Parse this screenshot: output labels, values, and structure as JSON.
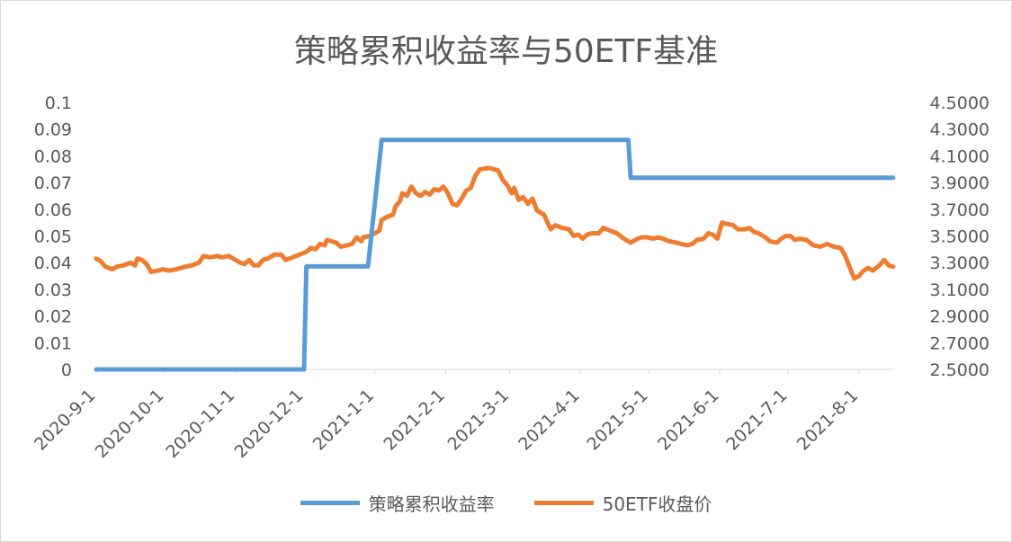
{
  "chart_data": {
    "type": "line",
    "title": "策略累积收益率与50ETF基准",
    "x_tick_labels": [
      "2020-9-1",
      "2020-10-1",
      "2020-11-1",
      "2020-12-1",
      "2021-1-1",
      "2021-2-1",
      "2021-3-1",
      "2021-4-1",
      "2021-5-1",
      "2021-6-1",
      "2021-7-1",
      "2021-8-1"
    ],
    "x_range": [
      "2020-9-1",
      "2021-8-16"
    ],
    "y_left": {
      "min": 0,
      "max": 0.1,
      "ticks": [
        "0",
        "0.01",
        "0.02",
        "0.03",
        "0.04",
        "0.05",
        "0.06",
        "0.07",
        "0.08",
        "0.09",
        "0.1"
      ]
    },
    "y_right": {
      "min": 2.5,
      "max": 4.5,
      "ticks": [
        "2.5000",
        "2.7000",
        "2.9000",
        "3.1000",
        "3.3000",
        "3.5000",
        "3.7000",
        "3.9000",
        "4.1000",
        "4.3000",
        "4.5000"
      ]
    },
    "grid": false,
    "legend_position": "bottom",
    "series": [
      {
        "name": "策略累积收益率",
        "axis": "left",
        "color": "#5b9bd5",
        "points": [
          [
            "2020-9-1",
            0
          ],
          [
            "2020-12-1",
            0
          ],
          [
            "2020-12-2",
            0.0386
          ],
          [
            "2020-12-29",
            0.0386
          ],
          [
            "2021-1-4",
            0.086
          ],
          [
            "2021-4-22",
            0.086
          ],
          [
            "2021-4-23",
            0.0718
          ],
          [
            "2021-8-16",
            0.0718
          ]
        ]
      },
      {
        "name": "50ETF收盘价",
        "axis": "right",
        "color": "#ed7d31",
        "points": [
          [
            "2020-9-1",
            3.33
          ],
          [
            "2020-9-3",
            3.31
          ],
          [
            "2020-9-5",
            3.27
          ],
          [
            "2020-9-8",
            3.25
          ],
          [
            "2020-9-10",
            3.27
          ],
          [
            "2020-9-13",
            3.28
          ],
          [
            "2020-9-16",
            3.3
          ],
          [
            "2020-9-18",
            3.28
          ],
          [
            "2020-9-19",
            3.33
          ],
          [
            "2020-9-21",
            3.32
          ],
          [
            "2020-9-23",
            3.29
          ],
          [
            "2020-9-25",
            3.23
          ],
          [
            "2020-9-28",
            3.24
          ],
          [
            "2020-9-30",
            3.25
          ],
          [
            "2020-10-3",
            3.24
          ],
          [
            "2020-10-6",
            3.25
          ],
          [
            "2020-10-10",
            3.27
          ],
          [
            "2020-10-13",
            3.28
          ],
          [
            "2020-10-16",
            3.3
          ],
          [
            "2020-10-18",
            3.35
          ],
          [
            "2020-10-21",
            3.34
          ],
          [
            "2020-10-24",
            3.35
          ],
          [
            "2020-10-26",
            3.34
          ],
          [
            "2020-10-29",
            3.35
          ],
          [
            "2020-10-31",
            3.33
          ],
          [
            "2020-11-3",
            3.3
          ],
          [
            "2020-11-5",
            3.29
          ],
          [
            "2020-11-7",
            3.32
          ],
          [
            "2020-11-9",
            3.28
          ],
          [
            "2020-11-11",
            3.28
          ],
          [
            "2020-11-13",
            3.32
          ],
          [
            "2020-11-15",
            3.33
          ],
          [
            "2020-11-18",
            3.36
          ],
          [
            "2020-11-21",
            3.36
          ],
          [
            "2020-11-23",
            3.32
          ],
          [
            "2020-11-26",
            3.34
          ],
          [
            "2020-11-29",
            3.36
          ],
          [
            "2020-12-2",
            3.38
          ],
          [
            "2020-12-4",
            3.41
          ],
          [
            "2020-12-6",
            3.4
          ],
          [
            "2020-12-8",
            3.44
          ],
          [
            "2020-12-10",
            3.43
          ],
          [
            "2020-12-11",
            3.47
          ],
          [
            "2020-12-13",
            3.46
          ],
          [
            "2020-12-15",
            3.45
          ],
          [
            "2020-12-17",
            3.42
          ],
          [
            "2020-12-20",
            3.43
          ],
          [
            "2020-12-22",
            3.44
          ],
          [
            "2020-12-24",
            3.49
          ],
          [
            "2020-12-26",
            3.46
          ],
          [
            "2020-12-27",
            3.49
          ],
          [
            "2020-12-30",
            3.5
          ],
          [
            "2021-1-1",
            3.52
          ],
          [
            "2021-1-3",
            3.54
          ],
          [
            "2021-1-4",
            3.62
          ],
          [
            "2021-1-6",
            3.64
          ],
          [
            "2021-1-9",
            3.66
          ],
          [
            "2021-1-10",
            3.72
          ],
          [
            "2021-1-12",
            3.76
          ],
          [
            "2021-1-13",
            3.82
          ],
          [
            "2021-1-15",
            3.8
          ],
          [
            "2021-1-17",
            3.87
          ],
          [
            "2021-1-19",
            3.82
          ],
          [
            "2021-1-21",
            3.8
          ],
          [
            "2021-1-23",
            3.83
          ],
          [
            "2021-1-25",
            3.81
          ],
          [
            "2021-1-27",
            3.85
          ],
          [
            "2021-1-29",
            3.84
          ],
          [
            "2021-1-31",
            3.87
          ],
          [
            "2021-2-2",
            3.82
          ],
          [
            "2021-2-4",
            3.74
          ],
          [
            "2021-2-6",
            3.73
          ],
          [
            "2021-2-8",
            3.78
          ],
          [
            "2021-2-10",
            3.84
          ],
          [
            "2021-2-12",
            3.86
          ],
          [
            "2021-2-14",
            3.95
          ],
          [
            "2021-2-16",
            4.0
          ],
          [
            "2021-2-20",
            4.01
          ],
          [
            "2021-2-24",
            3.99
          ],
          [
            "2021-2-26",
            3.92
          ],
          [
            "2021-2-28",
            3.88
          ],
          [
            "2021-3-2",
            3.82
          ],
          [
            "2021-3-3",
            3.86
          ],
          [
            "2021-3-5",
            3.77
          ],
          [
            "2021-3-7",
            3.79
          ],
          [
            "2021-3-9",
            3.74
          ],
          [
            "2021-3-11",
            3.78
          ],
          [
            "2021-3-13",
            3.69
          ],
          [
            "2021-3-16",
            3.66
          ],
          [
            "2021-3-19",
            3.55
          ],
          [
            "2021-3-21",
            3.58
          ],
          [
            "2021-3-24",
            3.56
          ],
          [
            "2021-3-27",
            3.55
          ],
          [
            "2021-3-29",
            3.5
          ],
          [
            "2021-3-31",
            3.51
          ],
          [
            "2021-4-2",
            3.48
          ],
          [
            "2021-4-4",
            3.51
          ],
          [
            "2021-4-6",
            3.52
          ],
          [
            "2021-4-9",
            3.52
          ],
          [
            "2021-4-11",
            3.56
          ],
          [
            "2021-4-14",
            3.54
          ],
          [
            "2021-4-17",
            3.52
          ],
          [
            "2021-4-20",
            3.48
          ],
          [
            "2021-4-23",
            3.45
          ],
          [
            "2021-4-26",
            3.48
          ],
          [
            "2021-4-28",
            3.49
          ],
          [
            "2021-4-30",
            3.49
          ],
          [
            "2021-5-3",
            3.48
          ],
          [
            "2021-5-5",
            3.49
          ],
          [
            "2021-5-7",
            3.48
          ],
          [
            "2021-5-10",
            3.46
          ],
          [
            "2021-5-13",
            3.45
          ],
          [
            "2021-5-15",
            3.44
          ],
          [
            "2021-5-18",
            3.43
          ],
          [
            "2021-5-20",
            3.44
          ],
          [
            "2021-5-22",
            3.47
          ],
          [
            "2021-5-25",
            3.48
          ],
          [
            "2021-5-27",
            3.52
          ],
          [
            "2021-5-29",
            3.51
          ],
          [
            "2021-5-31",
            3.48
          ],
          [
            "2021-6-2",
            3.6
          ],
          [
            "2021-6-4",
            3.59
          ],
          [
            "2021-6-7",
            3.58
          ],
          [
            "2021-6-9",
            3.55
          ],
          [
            "2021-6-12",
            3.55
          ],
          [
            "2021-6-14",
            3.56
          ],
          [
            "2021-6-16",
            3.53
          ],
          [
            "2021-6-18",
            3.52
          ],
          [
            "2021-6-21",
            3.49
          ],
          [
            "2021-6-23",
            3.46
          ],
          [
            "2021-6-26",
            3.45
          ],
          [
            "2021-6-28",
            3.48
          ],
          [
            "2021-6-30",
            3.5
          ],
          [
            "2021-7-2",
            3.5
          ],
          [
            "2021-7-4",
            3.47
          ],
          [
            "2021-7-6",
            3.48
          ],
          [
            "2021-7-9",
            3.47
          ],
          [
            "2021-7-12",
            3.43
          ],
          [
            "2021-7-15",
            3.42
          ],
          [
            "2021-7-18",
            3.44
          ],
          [
            "2021-7-21",
            3.42
          ],
          [
            "2021-7-24",
            3.41
          ],
          [
            "2021-7-26",
            3.35
          ],
          [
            "2021-7-28",
            3.26
          ],
          [
            "2021-7-30",
            3.18
          ],
          [
            "2021-8-1",
            3.2
          ],
          [
            "2021-8-3",
            3.24
          ],
          [
            "2021-8-5",
            3.26
          ],
          [
            "2021-8-7",
            3.24
          ],
          [
            "2021-8-10",
            3.28
          ],
          [
            "2021-8-12",
            3.32
          ],
          [
            "2021-8-14",
            3.28
          ],
          [
            "2021-8-16",
            3.27
          ]
        ]
      }
    ]
  }
}
